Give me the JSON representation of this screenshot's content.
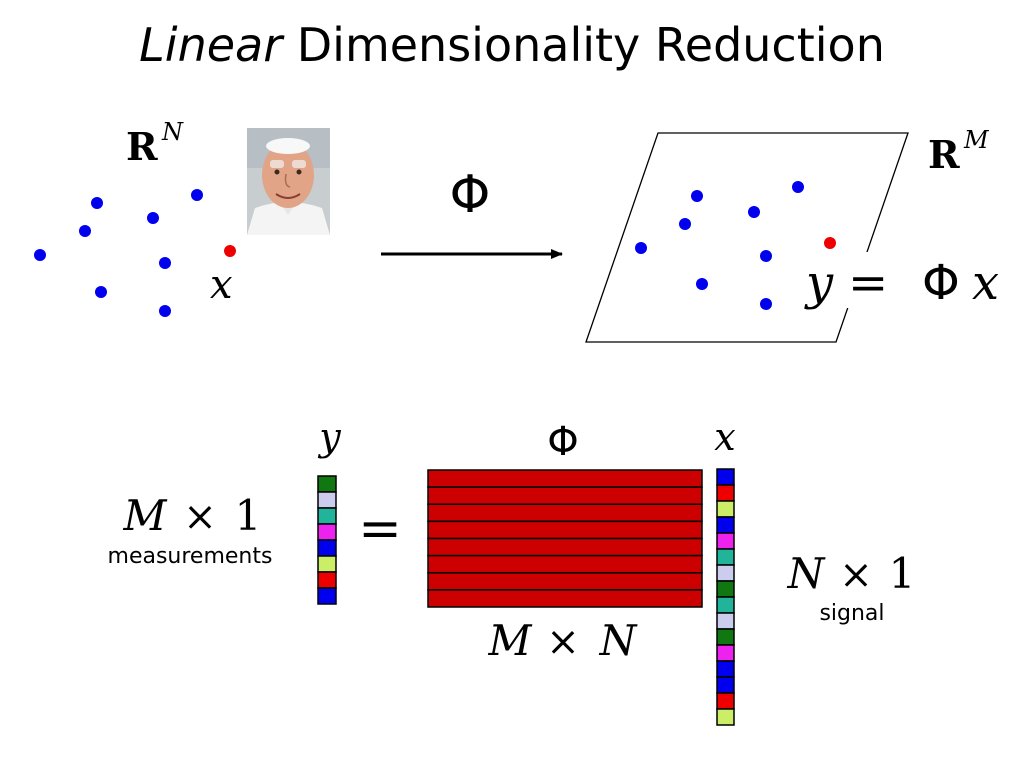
{
  "title": {
    "emphasis": "Linear",
    "rest": " Dimensionality Reduction"
  },
  "left_space": {
    "space_bold": "R",
    "space_exp": "N",
    "point_label": "x"
  },
  "map_label": "Φ",
  "right_space": {
    "space_bold": "R",
    "space_exp": "M",
    "eq_y": "y",
    "eq_eq": "=",
    "eq_phi": "Φ",
    "eq_x": "x"
  },
  "matrix_eq": {
    "y_label": "y",
    "equals": "=",
    "phi_label": "Φ",
    "x_label": "x",
    "m_dims": {
      "a": "M",
      "times": "×",
      "b": "1"
    },
    "measurements": "measurements",
    "mn_dims": {
      "a": "M",
      "times": "×",
      "b": "N"
    },
    "n_dims": {
      "a": "N",
      "times": "×",
      "b": "1"
    },
    "signal": "signal"
  },
  "colors": {
    "point": "#0000ee",
    "highlight": "#ee0000",
    "matrix": "#cc0000",
    "cells": [
      "#117711",
      "#d0d0f0",
      "#22b49a",
      "#ee00ee",
      "#0000ee",
      "#ccee66",
      "#ee0000"
    ]
  },
  "y_vector_cells": [
    "#117711",
    "#ccccee",
    "#22b49a",
    "#ee22ee",
    "#0000ee",
    "#ccee66",
    "#ee0000",
    "#0000ee"
  ],
  "x_vector_cells": [
    "#0000ee",
    "#ee0000",
    "#ccee66",
    "#0000ee",
    "#ee22ee",
    "#22b49a",
    "#ccccee",
    "#117711",
    "#22b49a",
    "#ccccee",
    "#117711",
    "#ee22ee",
    "#0000ee",
    "#0000ee",
    "#ee0000",
    "#ccee66"
  ],
  "matrix_rows": 8,
  "photo": {
    "icon": "portrait-photo-icon"
  }
}
